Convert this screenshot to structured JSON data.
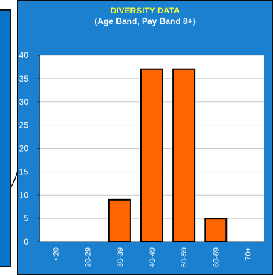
{
  "chart_data": {
    "type": "bar",
    "title": "DIVERSITY DATA",
    "subtitle": "(Age Band, Pay Band 8+)",
    "categories": [
      "<20",
      "20-29",
      "30-39",
      "40-49",
      "50-59",
      "60-69",
      "70+"
    ],
    "values": [
      0,
      0,
      9,
      37,
      37,
      5,
      0
    ],
    "ylim": [
      0,
      40
    ],
    "yticks": [
      0,
      5,
      10,
      15,
      20,
      25,
      30,
      35,
      40
    ],
    "grid": true,
    "colors": {
      "bar_fill": "#ff6600",
      "bar_stroke": "#000000",
      "plot_bg": "#ffffff",
      "panel_bg": "#1a80cf",
      "title": "#ffff33",
      "text": "#ffffff",
      "grid": "#c8c8c8"
    }
  }
}
